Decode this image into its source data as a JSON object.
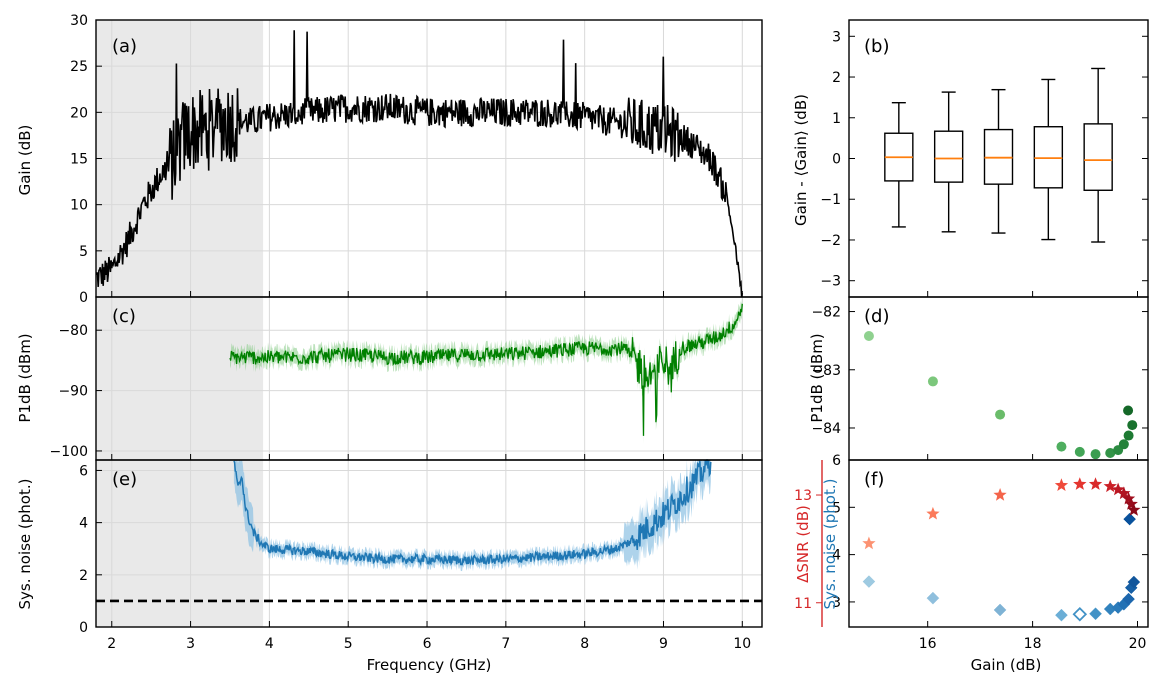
{
  "chart_data": [
    {
      "id": "a",
      "type": "line",
      "panel_label": "(a)",
      "xlabel": "Frequency (GHz)",
      "ylabel": "Gain (dB)",
      "xlim": [
        1.8,
        10.25
      ],
      "ylim": [
        0,
        30
      ],
      "xticks": [
        2,
        3,
        4,
        5,
        6,
        7,
        8,
        9,
        10
      ],
      "yticks": [
        0,
        5,
        10,
        15,
        20,
        25,
        30
      ],
      "grid": true,
      "shaded_region": [
        1.8,
        3.92
      ],
      "series": [
        {
          "name": "Gain",
          "color": "#000000",
          "x": [
            1.8,
            2.0,
            2.2,
            2.4,
            2.6,
            2.8,
            2.9,
            3.0,
            3.2,
            3.3,
            3.4,
            3.6,
            3.8,
            4.0,
            4.5,
            5.0,
            5.5,
            6.0,
            6.5,
            7.0,
            7.5,
            8.0,
            8.3,
            8.7,
            9.0,
            9.3,
            9.6,
            9.8,
            9.9,
            10.0
          ],
          "values": [
            2,
            3,
            6,
            10,
            13,
            15,
            17,
            18,
            18,
            18.5,
            19,
            19,
            19,
            19.5,
            20,
            20.5,
            20.5,
            20,
            20,
            20,
            20,
            19.5,
            19,
            18.5,
            18,
            17,
            15,
            11,
            6,
            0
          ]
        }
      ]
    },
    {
      "id": "b",
      "type": "box",
      "panel_label": "(b)",
      "ylabel": "Gain - ⟨Gain⟩ (dB)",
      "ylim": [
        -3.4,
        3.4
      ],
      "yticks": [
        -3,
        -2,
        -1,
        0,
        1,
        2,
        3
      ],
      "boxes": [
        {
          "whisker_low": -1.68,
          "q1": -0.55,
          "median": 0.03,
          "q3": 0.62,
          "whisker_high": 1.37
        },
        {
          "whisker_low": -1.8,
          "q1": -0.58,
          "median": 0.0,
          "q3": 0.67,
          "whisker_high": 1.63
        },
        {
          "whisker_low": -1.83,
          "q1": -0.63,
          "median": 0.02,
          "q3": 0.71,
          "whisker_high": 1.69
        },
        {
          "whisker_low": -1.99,
          "q1": -0.72,
          "median": 0.01,
          "q3": 0.78,
          "whisker_high": 1.94
        },
        {
          "whisker_low": -2.05,
          "q1": -0.78,
          "median": -0.04,
          "q3": 0.85,
          "whisker_high": 2.21
        }
      ]
    },
    {
      "id": "c",
      "type": "line",
      "panel_label": "(c)",
      "ylabel": "P1dB (dBm)",
      "xlim": [
        1.8,
        10.25
      ],
      "ylim": [
        -101.5,
        -74.5
      ],
      "yticks": [
        -100,
        -90,
        -80
      ],
      "grid": true,
      "series": [
        {
          "name": "P1dB",
          "color": "#008000",
          "x": [
            3.5,
            4.0,
            4.5,
            5.0,
            5.5,
            6.0,
            6.5,
            7.0,
            7.5,
            8.0,
            8.5,
            8.7,
            8.8,
            9.0,
            9.1,
            9.2,
            9.5,
            9.7,
            9.9,
            10.0
          ],
          "values": [
            -84.5,
            -84.5,
            -84.5,
            -84,
            -84.5,
            -84.5,
            -84,
            -84,
            -83.5,
            -83,
            -83,
            -86,
            -88,
            -85,
            -87,
            -83,
            -82,
            -81,
            -79,
            -76
          ]
        }
      ]
    },
    {
      "id": "d",
      "type": "scatter",
      "panel_label": "(d)",
      "ylabel": "P1dB (dBm)",
      "xlim": [
        14.5,
        20.2
      ],
      "ylim": [
        -84.55,
        -81.75
      ],
      "yticks": [
        -84,
        -83,
        -82
      ],
      "points": [
        {
          "x": 14.88,
          "y": -82.42,
          "color": "#8fd18f"
        },
        {
          "x": 16.1,
          "y": -83.2,
          "color": "#7cc77c"
        },
        {
          "x": 17.38,
          "y": -83.77,
          "color": "#6abc6a"
        },
        {
          "x": 18.55,
          "y": -84.32,
          "color": "#4fae5f"
        },
        {
          "x": 18.9,
          "y": -84.41,
          "color": "#43a557"
        },
        {
          "x": 19.2,
          "y": -84.45,
          "color": "#3b9d50"
        },
        {
          "x": 19.48,
          "y": -84.43,
          "color": "#339448"
        },
        {
          "x": 19.63,
          "y": -84.38,
          "color": "#2b8b41"
        },
        {
          "x": 19.74,
          "y": -84.28,
          "color": "#24823a"
        },
        {
          "x": 19.83,
          "y": -84.13,
          "color": "#1e7a33"
        },
        {
          "x": 19.9,
          "y": -83.95,
          "color": "#19722e"
        },
        {
          "x": 19.82,
          "y": -83.7,
          "color": "#146828"
        }
      ]
    },
    {
      "id": "e",
      "type": "line",
      "panel_label": "(e)",
      "ylabel": "Sys. noise (phot.)",
      "xlabel": "Frequency (GHz)",
      "xlim": [
        1.8,
        10.25
      ],
      "ylim": [
        0,
        6.4
      ],
      "yticks": [
        0,
        2,
        4,
        6
      ],
      "xticks": [
        2,
        3,
        4,
        5,
        6,
        7,
        8,
        9,
        10
      ],
      "grid": true,
      "reference_line": {
        "y": 1,
        "style": "dashed",
        "color": "#000000"
      },
      "series": [
        {
          "name": "Sys. noise",
          "color": "#1f77b4",
          "x": [
            3.55,
            3.6,
            3.65,
            3.7,
            3.8,
            3.9,
            4.0,
            4.5,
            5.0,
            5.5,
            6.0,
            6.5,
            7.0,
            7.5,
            8.0,
            8.4,
            8.6,
            8.8,
            9.0,
            9.2,
            9.4,
            9.6
          ],
          "values": [
            6.4,
            5.3,
            5.8,
            4.5,
            3.6,
            3.2,
            3.0,
            2.9,
            2.7,
            2.6,
            2.6,
            2.55,
            2.6,
            2.7,
            2.8,
            3.0,
            3.3,
            3.8,
            4.3,
            4.9,
            5.6,
            6.4
          ]
        }
      ]
    },
    {
      "id": "f",
      "type": "scatter",
      "panel_label": "(f)",
      "xlabel": "Gain (dB)",
      "xlim": [
        14.5,
        20.2
      ],
      "xticks": [
        16,
        18,
        20
      ],
      "left_axis": {
        "label": "Sys. noise (phot.)",
        "ylim": [
          2.47,
          6.0
        ],
        "yticks": [
          3,
          4,
          5,
          6
        ],
        "color": "#1f77b4"
      },
      "second_axis": {
        "label": "ΔSNR (dB)",
        "ylim": [
          10.55,
          13.65
        ],
        "yticks": [
          11,
          13
        ],
        "color": "#d62728"
      },
      "noise_points": [
        {
          "x": 14.88,
          "y": 3.43,
          "color": "#9ecae1",
          "filled": true
        },
        {
          "x": 16.1,
          "y": 3.08,
          "color": "#8fbfdd",
          "filled": true
        },
        {
          "x": 17.38,
          "y": 2.83,
          "color": "#7fb3d5",
          "filled": true
        },
        {
          "x": 18.55,
          "y": 2.72,
          "color": "#6baed6",
          "filled": true
        },
        {
          "x": 18.9,
          "y": 2.74,
          "color": "#4292c6",
          "filled": false
        },
        {
          "x": 19.2,
          "y": 2.75,
          "color": "#4292c6",
          "filled": true
        },
        {
          "x": 19.48,
          "y": 2.85,
          "color": "#3182bd",
          "filled": true
        },
        {
          "x": 19.63,
          "y": 2.88,
          "color": "#2b7bba",
          "filled": true
        },
        {
          "x": 19.74,
          "y": 2.95,
          "color": "#2171b5",
          "filled": true
        },
        {
          "x": 19.83,
          "y": 3.06,
          "color": "#1c66ad",
          "filled": true
        },
        {
          "x": 19.88,
          "y": 3.3,
          "color": "#165fa5",
          "filled": true
        },
        {
          "x": 19.93,
          "y": 3.42,
          "color": "#11569c",
          "filled": true
        },
        {
          "x": 19.85,
          "y": 4.75,
          "color": "#08519c",
          "filled": true
        }
      ],
      "snr_points": [
        {
          "x": 14.88,
          "y": 12.1,
          "color": "#fc9272"
        },
        {
          "x": 16.1,
          "y": 12.65,
          "color": "#fb7a5a"
        },
        {
          "x": 17.38,
          "y": 13.0,
          "color": "#f4644a"
        },
        {
          "x": 18.55,
          "y": 13.18,
          "color": "#ef4a3a"
        },
        {
          "x": 18.9,
          "y": 13.2,
          "color": "#e4352f"
        },
        {
          "x": 19.2,
          "y": 13.2,
          "color": "#d92a2a"
        },
        {
          "x": 19.48,
          "y": 13.16,
          "color": "#cb2027"
        },
        {
          "x": 19.63,
          "y": 13.1,
          "color": "#bd1824"
        },
        {
          "x": 19.74,
          "y": 13.03,
          "color": "#b01422"
        },
        {
          "x": 19.83,
          "y": 12.93,
          "color": "#a3101f"
        },
        {
          "x": 19.88,
          "y": 12.83,
          "color": "#960c1c"
        },
        {
          "x": 19.93,
          "y": 12.72,
          "color": "#8a0a19"
        }
      ]
    }
  ]
}
